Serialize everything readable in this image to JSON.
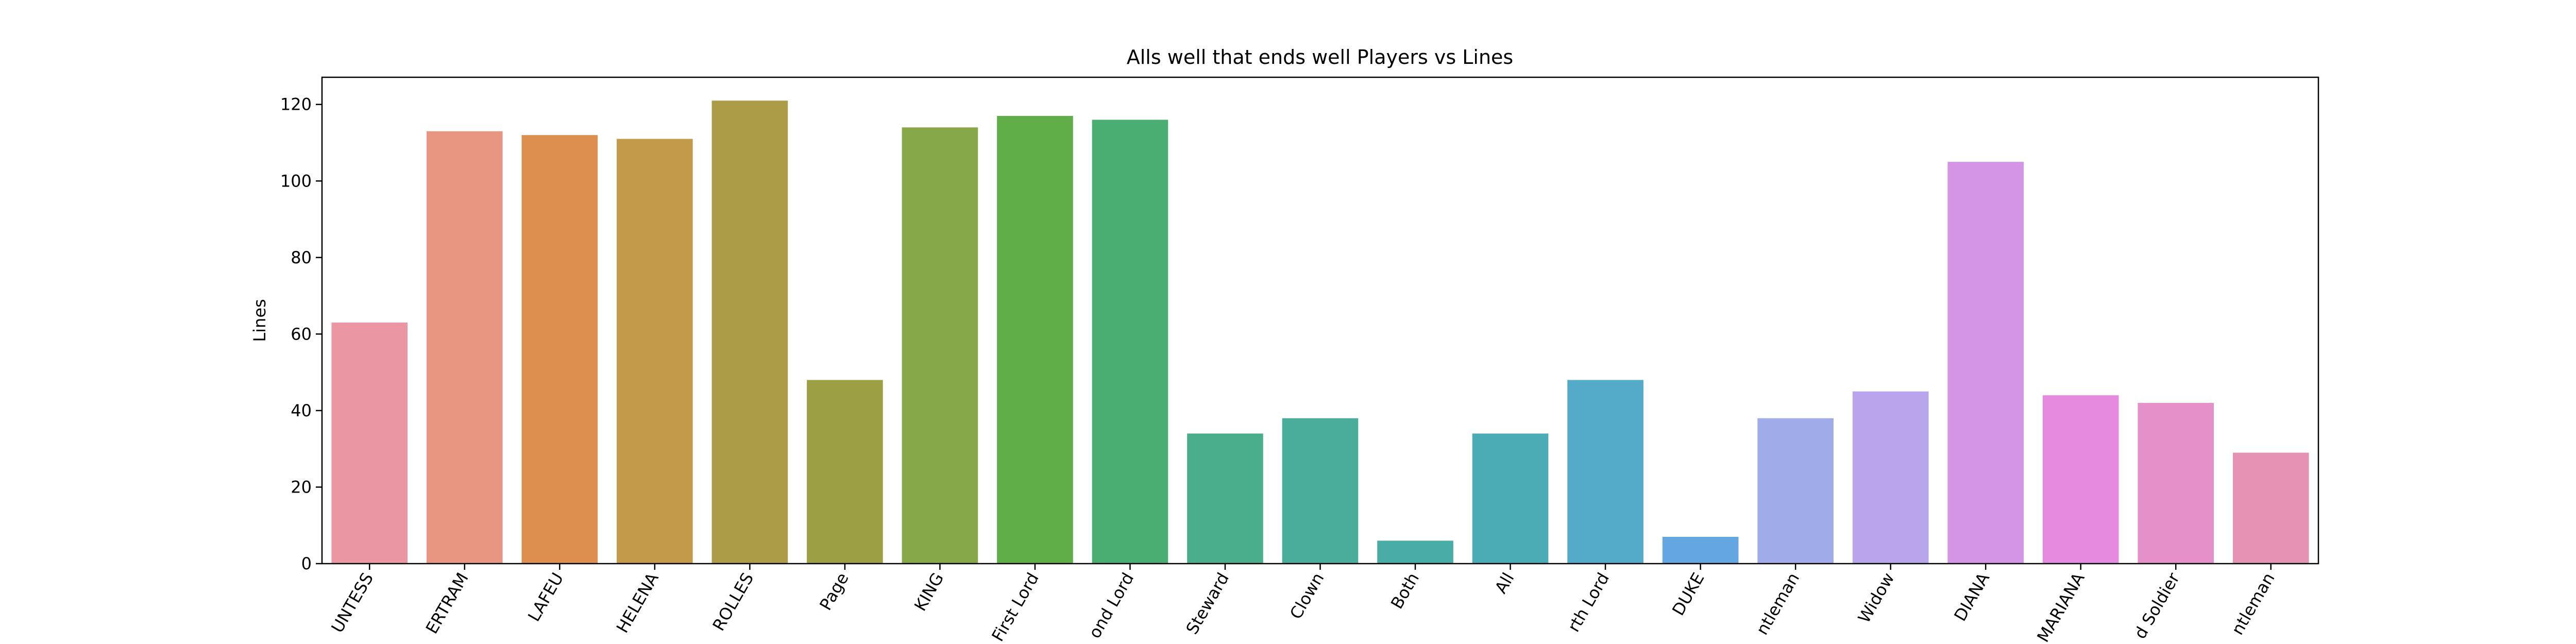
{
  "chart_data": {
    "type": "bar",
    "title": "Alls well that ends well Players vs Lines",
    "y_label": "Lines",
    "categories": [
      "UNTESS",
      "ERTRAM",
      "LAFEU",
      "HELENA",
      "ROLLES",
      "Page",
      "KING",
      "First Lord",
      "ond Lord",
      "Steward",
      "Clown",
      "Both",
      "All",
      "rth Lord",
      "DUKE",
      "ntleman",
      "Widow",
      "DIANA",
      "MARIANA",
      "d Soldier",
      "ntleman"
    ],
    "values": [
      63,
      113,
      112,
      111,
      121,
      48,
      114,
      117,
      116,
      34,
      38,
      6,
      34,
      48,
      7,
      38,
      45,
      105,
      44,
      42,
      29
    ],
    "colors": [
      "#ea96a3",
      "#e89582",
      "#dc8f4e",
      "#c29a4a",
      "#ad9c47",
      "#9d9f45",
      "#87a849",
      "#5fae47",
      "#4aad72",
      "#4aae8c",
      "#4aad9b",
      "#49aca6",
      "#4bacb6",
      "#53aac9",
      "#64a6e0",
      "#a0acea",
      "#b9a5ec",
      "#d495e6",
      "#e68ae0",
      "#e590c9",
      "#e592b5"
    ],
    "ylim": [
      0,
      127.1
    ],
    "yticks": [
      0,
      20,
      40,
      60,
      80,
      100,
      120
    ]
  }
}
